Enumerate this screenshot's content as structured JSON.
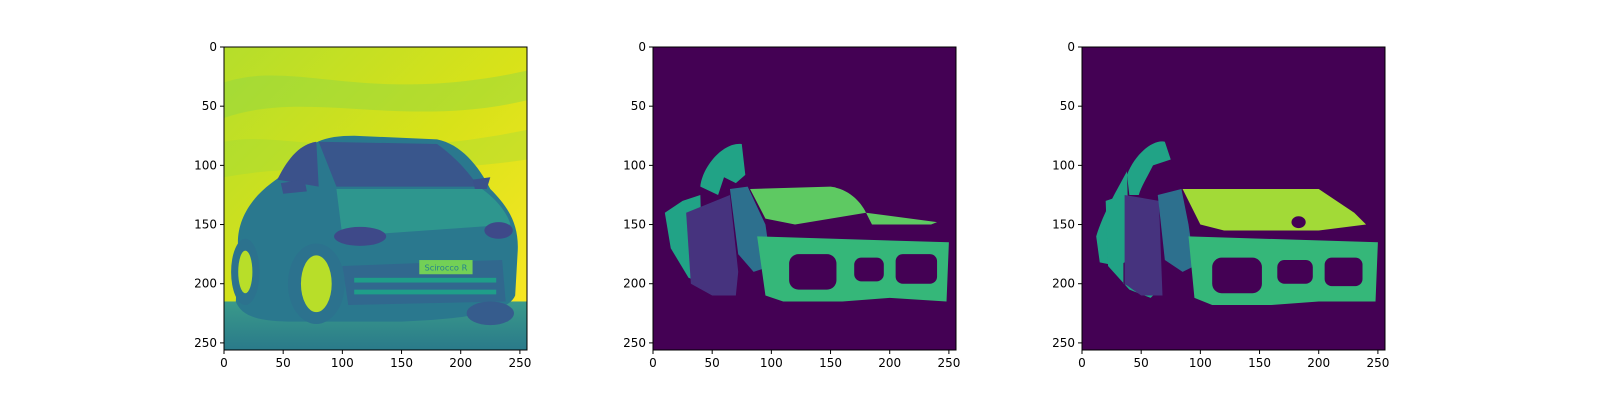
{
  "chart_data": [
    {
      "type": "heatmap",
      "title": "",
      "content": "grayscale car photo rendered with viridis colormap",
      "xlim": [
        0,
        256
      ],
      "ylim": [
        256,
        0
      ],
      "xticks": [
        0,
        50,
        100,
        150,
        200,
        250
      ],
      "yticks": [
        0,
        50,
        100,
        150,
        200,
        250
      ],
      "plate_text": "Scirocco R",
      "colormap": "viridis"
    },
    {
      "type": "heatmap",
      "title": "",
      "content": "predicted segmentation mask",
      "xlim": [
        0,
        256
      ],
      "ylim": [
        256,
        0
      ],
      "xticks": [
        0,
        50,
        100,
        150,
        200,
        250
      ],
      "yticks": [
        0,
        50,
        100,
        150,
        200,
        250
      ],
      "colormap": "viridis"
    },
    {
      "type": "heatmap",
      "title": "",
      "content": "ground-truth segmentation mask",
      "xlim": [
        0,
        256
      ],
      "ylim": [
        256,
        0
      ],
      "xticks": [
        0,
        50,
        100,
        150,
        200,
        250
      ],
      "yticks": [
        0,
        50,
        100,
        150,
        200,
        250
      ],
      "colormap": "viridis"
    }
  ],
  "colors": {
    "background_class": "#440154",
    "door_class": "#46337e",
    "fender_class": "#2d708e",
    "side_class": "#21a386",
    "bumper_class": "#35b779",
    "hood_pred_class": "#5ec962",
    "hood_gt_class": "#a2da37",
    "sky_light": "#fde725",
    "sky_mid": "#b5de2b"
  }
}
